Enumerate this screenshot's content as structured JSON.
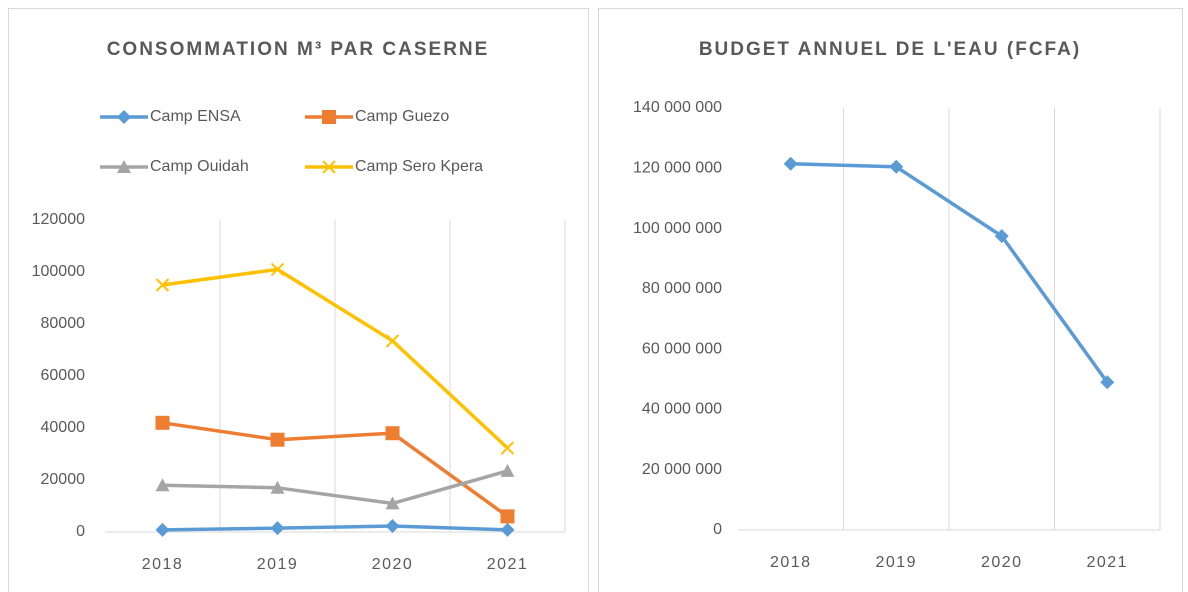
{
  "chart_data": [
    {
      "type": "line",
      "title": "CONSOMMATION M³ PAR CASERNE",
      "categories": [
        "2018",
        "2019",
        "2020",
        "2021"
      ],
      "series": [
        {
          "name": "Camp ENSA",
          "color": "#5b9bd5",
          "marker": "diamond",
          "values": [
            800,
            1500,
            2300,
            800
          ]
        },
        {
          "name": "Camp Guezo",
          "color": "#ed7d31",
          "marker": "square",
          "values": [
            42000,
            35500,
            38000,
            6000
          ]
        },
        {
          "name": "Camp Ouidah",
          "color": "#a5a5a5",
          "marker": "triangle",
          "values": [
            18000,
            17000,
            11000,
            23500
          ]
        },
        {
          "name": "Camp Sero Kpera",
          "color": "#ffc000",
          "marker": "x",
          "values": [
            95000,
            101000,
            73500,
            32300
          ]
        }
      ],
      "ylim": [
        0,
        120000
      ],
      "yticks": [
        0,
        20000,
        40000,
        60000,
        80000,
        100000,
        120000
      ],
      "xgrid": true,
      "legend": "top"
    },
    {
      "type": "line",
      "title": "BUDGET ANNUEL DE L'EAU (FCFA)",
      "categories": [
        "2018",
        "2019",
        "2020",
        "2021"
      ],
      "series": [
        {
          "color": "#5b9bd5",
          "marker": "diamond",
          "values": [
            121500000,
            120500000,
            97500000,
            49000000
          ]
        }
      ],
      "ylim": [
        0,
        140000000
      ],
      "yticks": [
        0,
        {
          "value": 20000000,
          "label": "20 000 000"
        },
        {
          "value": 40000000,
          "label": "40 000 000"
        },
        {
          "value": 60000000,
          "label": "60 000 000"
        },
        {
          "value": 80000000,
          "label": "80 000 000"
        },
        {
          "value": 100000000,
          "label": "100 000 000"
        },
        {
          "value": 120000000,
          "label": "120 000 000"
        },
        {
          "value": 140000000,
          "label": "140 000 000"
        }
      ],
      "xgrid": true
    }
  ]
}
